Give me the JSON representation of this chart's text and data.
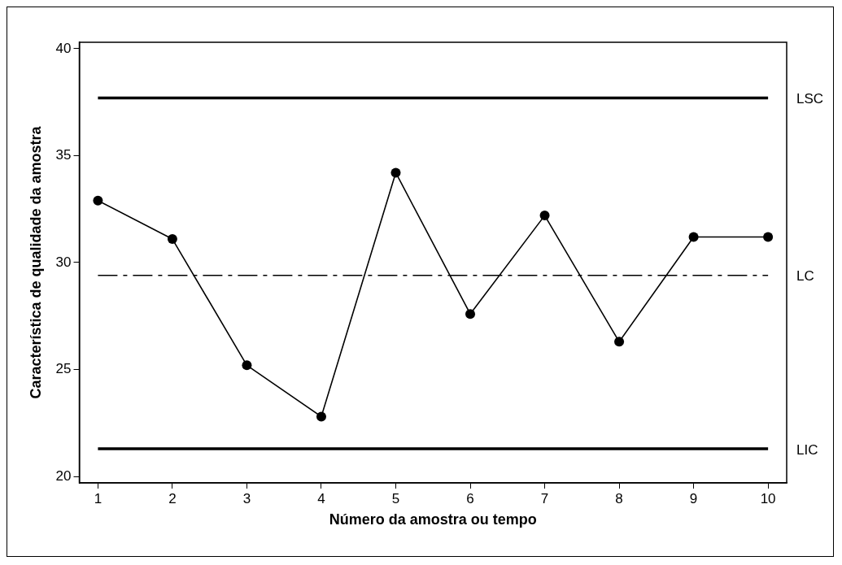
{
  "chart_data": {
    "type": "line",
    "xlabel": "Número da amostra ou tempo",
    "ylabel": "Característica de qualidade da amostra",
    "x": [
      1,
      2,
      3,
      4,
      5,
      6,
      7,
      8,
      9,
      10
    ],
    "series": [
      {
        "color": "#000000",
        "values": [
          32.9,
          31.1,
          25.2,
          22.8,
          34.2,
          27.6,
          32.2,
          26.3,
          31.2,
          31.2
        ]
      }
    ],
    "xlim": [
      0.75,
      10.25
    ],
    "xticks": [
      1,
      2,
      3,
      4,
      5,
      6,
      7,
      8,
      9,
      10
    ],
    "ylim": [
      19.7,
      40.3
    ],
    "yticks": [
      20,
      25,
      30,
      35,
      40
    ],
    "ref_lines": [
      {
        "axis": "y",
        "value": 37.7,
        "label": "LSC",
        "color": "#000000",
        "line_style": "solid"
      },
      {
        "axis": "y",
        "value": 29.4,
        "label": "LC",
        "color": "#000000",
        "line_style": "dashed"
      },
      {
        "axis": "y",
        "value": 21.3,
        "label": "LIC",
        "color": "#000000",
        "line_style": "solid"
      }
    ],
    "grid": false,
    "legend": false,
    "marker": "circle",
    "line_style": "solid"
  }
}
